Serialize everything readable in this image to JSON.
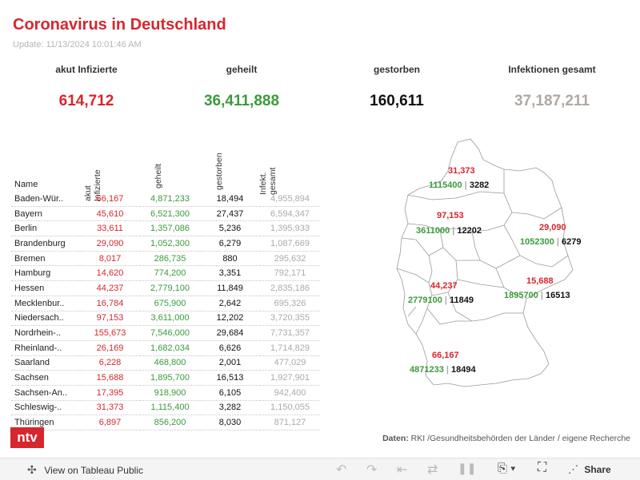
{
  "header": {
    "title": "Coronavirus in Deutschland",
    "update": "Update: 11/13/2024 10:01:46 AM"
  },
  "kpis": [
    {
      "label": "akut Infizierte",
      "value": "614,712",
      "color": "#d7262d"
    },
    {
      "label": "geheilt",
      "value": "36,411,888",
      "color": "#3c9a3c"
    },
    {
      "label": "gestorben",
      "value": "160,611",
      "color": "#111111"
    },
    {
      "label": "Infektionen gesamt",
      "value": "37,187,211",
      "color": "#b0a8a3"
    }
  ],
  "table": {
    "name_header": "Name",
    "headers": [
      "akut\nInfizierte",
      "geheilt",
      "gestorben",
      "Infekt.\ngesamt"
    ],
    "rows": [
      {
        "name": "Baden-Wür..",
        "akut": "66,167",
        "geheilt": "4,871,233",
        "gestorben": "18,494",
        "gesamt": "4,955,894"
      },
      {
        "name": "Bayern",
        "akut": "45,610",
        "geheilt": "6,521,300",
        "gestorben": "27,437",
        "gesamt": "6,594,347"
      },
      {
        "name": "Berlin",
        "akut": "33,611",
        "geheilt": "1,357,086",
        "gestorben": "5,236",
        "gesamt": "1,395,933"
      },
      {
        "name": "Brandenburg",
        "akut": "29,090",
        "geheilt": "1,052,300",
        "gestorben": "6,279",
        "gesamt": "1,087,669"
      },
      {
        "name": "Bremen",
        "akut": "8,017",
        "geheilt": "286,735",
        "gestorben": "880",
        "gesamt": "295,632"
      },
      {
        "name": "Hamburg",
        "akut": "14,620",
        "geheilt": "774,200",
        "gestorben": "3,351",
        "gesamt": "792,171"
      },
      {
        "name": "Hessen",
        "akut": "44,237",
        "geheilt": "2,779,100",
        "gestorben": "11,849",
        "gesamt": "2,835,186"
      },
      {
        "name": "Mecklenbur..",
        "akut": "16,784",
        "geheilt": "675,900",
        "gestorben": "2,642",
        "gesamt": "695,326"
      },
      {
        "name": "Niedersach..",
        "akut": "97,153",
        "geheilt": "3,611,000",
        "gestorben": "12,202",
        "gesamt": "3,720,355"
      },
      {
        "name": "Nordrhein-..",
        "akut": "155,673",
        "geheilt": "7,546,000",
        "gestorben": "29,684",
        "gesamt": "7,731,357"
      },
      {
        "name": "Rheinland-..",
        "akut": "26,169",
        "geheilt": "1,682,034",
        "gestorben": "6,626",
        "gesamt": "1,714,829"
      },
      {
        "name": "Saarland",
        "akut": "6,228",
        "geheilt": "468,800",
        "gestorben": "2,001",
        "gesamt": "477,029"
      },
      {
        "name": "Sachsen",
        "akut": "15,688",
        "geheilt": "1,895,700",
        "gestorben": "16,513",
        "gesamt": "1,927,901"
      },
      {
        "name": "Sachsen-An..",
        "akut": "17,395",
        "geheilt": "918,900",
        "gestorben": "6,105",
        "gesamt": "942,400"
      },
      {
        "name": "Schleswig-..",
        "akut": "31,373",
        "geheilt": "1,115,400",
        "gestorben": "3,282",
        "gesamt": "1,150,055"
      },
      {
        "name": "Thüringen",
        "akut": "6,897",
        "geheilt": "856,200",
        "gestorben": "8,030",
        "gesamt": "871,127"
      }
    ]
  },
  "map_labels": [
    {
      "akut": "31,373",
      "geheilt": "1115400",
      "gestorben": "3282"
    },
    {
      "akut": "97,153",
      "geheilt": "3611000",
      "gestorben": "12202"
    },
    {
      "akut": "29,090",
      "geheilt": "1052300",
      "gestorben": "6279"
    },
    {
      "akut": "44,237",
      "geheilt": "2779100",
      "gestorben": "11849"
    },
    {
      "akut": "15,688",
      "geheilt": "1895700",
      "gestorben": "16513"
    },
    {
      "akut": "66,167",
      "geheilt": "4871233",
      "gestorben": "18494"
    }
  ],
  "branding": {
    "logo_text": "ntv",
    "source_bold": "Daten:",
    "source_text": " RKI /Gesundheitsbehörden der Länder / eigene Recherche"
  },
  "footer": {
    "view_label": "View on Tableau Public",
    "share_label": "Share",
    "icons": [
      "tableau-icon",
      "undo-icon",
      "redo-icon",
      "revert-icon",
      "pause-icon",
      "download-icon",
      "fullscreen-icon",
      "share-icon"
    ]
  },
  "colors": {
    "red": "#d7262d",
    "green": "#3c9a3c",
    "grey": "#b0a8a3"
  }
}
